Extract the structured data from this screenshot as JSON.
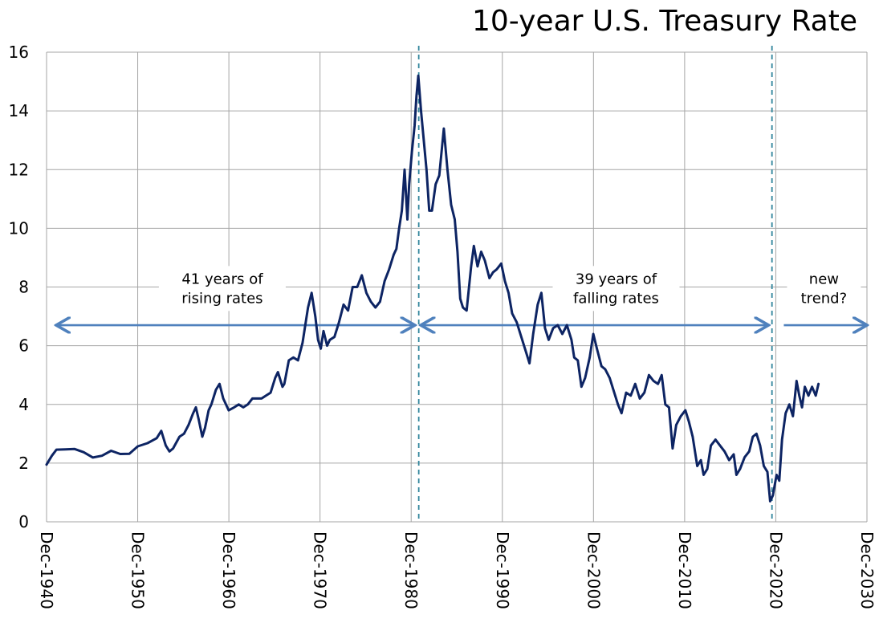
{
  "chart_data": {
    "type": "line",
    "title": "10-year U.S. Treasury Rate",
    "xlabel": "",
    "ylabel": "",
    "xlim": [
      1940.92,
      2030.92
    ],
    "ylim": [
      0,
      16
    ],
    "y_ticks": [
      0,
      2,
      4,
      6,
      8,
      10,
      12,
      14,
      16
    ],
    "x_ticks": [
      {
        "value": 1940.92,
        "label": "Dec-1940"
      },
      {
        "value": 1950.92,
        "label": "Dec-1950"
      },
      {
        "value": 1960.92,
        "label": "Dec-1960"
      },
      {
        "value": 1970.92,
        "label": "Dec-1970"
      },
      {
        "value": 1980.92,
        "label": "Dec-1980"
      },
      {
        "value": 1990.92,
        "label": "Dec-1990"
      },
      {
        "value": 2000.92,
        "label": "Dec-2000"
      },
      {
        "value": 2010.92,
        "label": "Dec-2010"
      },
      {
        "value": 2020.92,
        "label": "Dec-2020"
      },
      {
        "value": 2030.92,
        "label": "Dec-2030"
      }
    ],
    "grid": true,
    "line_color": "#0d2463",
    "arrow_color": "#4f81bd",
    "divider_color": "#31859c",
    "dividers": [
      1981.75,
      2020.5
    ],
    "series": [
      {
        "x": [
          1940.92,
          1941.5,
          1942,
          1943,
          1944,
          1945,
          1946,
          1947,
          1948,
          1949,
          1950,
          1950.92,
          1952,
          1953,
          1953.5,
          1954,
          1954.4,
          1954.8,
          1955.5,
          1956,
          1956.5,
          1957,
          1957.3,
          1957.6,
          1958,
          1958.3,
          1958.7,
          1959,
          1959.5,
          1959.9,
          1960.3,
          1960.9,
          1961.5,
          1962,
          1962.5,
          1963,
          1963.5,
          1964,
          1964.5,
          1965,
          1965.5,
          1966,
          1966.3,
          1966.8,
          1967,
          1967.5,
          1968,
          1968.5,
          1969,
          1969.3,
          1969.6,
          1970,
          1970.4,
          1970.7,
          1971,
          1971.3,
          1971.7,
          1972,
          1972.5,
          1973,
          1973.5,
          1974,
          1974.5,
          1975,
          1975.5,
          1976,
          1976.5,
          1977,
          1977.5,
          1978,
          1978.5,
          1979,
          1979.3,
          1979.6,
          1979.9,
          1980.2,
          1980.5,
          1980.7,
          1981,
          1981.3,
          1981.5,
          1981.7,
          1982,
          1982.3,
          1982.6,
          1982.9,
          1983.2,
          1983.6,
          1984,
          1984.5,
          1984.9,
          1985.3,
          1985.7,
          1986,
          1986.3,
          1986.6,
          1987,
          1987.5,
          1987.8,
          1988.2,
          1988.6,
          1989,
          1989.5,
          1989.9,
          1990.3,
          1990.8,
          1991.2,
          1991.6,
          1992,
          1992.5,
          1993,
          1993.5,
          1993.9,
          1994.3,
          1994.8,
          1995.2,
          1995.6,
          1996,
          1996.5,
          1997,
          1997.5,
          1998,
          1998.5,
          1998.8,
          1999.2,
          1999.6,
          2000,
          2000.5,
          2000.9,
          2001.3,
          2001.8,
          2002.2,
          2002.7,
          2003.2,
          2003.6,
          2004,
          2004.5,
          2005,
          2005.5,
          2006,
          2006.5,
          2007,
          2007.5,
          2008,
          2008.4,
          2008.8,
          2009.2,
          2009.6,
          2010,
          2010.5,
          2011,
          2011.4,
          2011.8,
          2012.3,
          2012.7,
          2013,
          2013.4,
          2013.8,
          2014.3,
          2014.8,
          2015.3,
          2015.8,
          2016.3,
          2016.6,
          2017,
          2017.5,
          2018,
          2018.4,
          2018.8,
          2019.2,
          2019.6,
          2020,
          2020.3,
          2020.6,
          2021,
          2021.3,
          2021.6,
          2022,
          2022.4,
          2022.8,
          2023.2,
          2023.5,
          2023.8,
          2024.1,
          2024.5,
          2024.9,
          2025.3,
          2025.6
        ],
        "y": [
          1.95,
          2.25,
          2.46,
          2.47,
          2.48,
          2.37,
          2.19,
          2.25,
          2.42,
          2.31,
          2.32,
          2.57,
          2.68,
          2.85,
          3.1,
          2.6,
          2.4,
          2.5,
          2.9,
          3.0,
          3.3,
          3.7,
          3.9,
          3.5,
          2.9,
          3.2,
          3.8,
          4.0,
          4.5,
          4.7,
          4.2,
          3.8,
          3.9,
          4.0,
          3.9,
          4.0,
          4.2,
          4.2,
          4.2,
          4.3,
          4.4,
          4.9,
          5.1,
          4.6,
          4.7,
          5.5,
          5.6,
          5.5,
          6.1,
          6.7,
          7.3,
          7.8,
          7.0,
          6.2,
          5.9,
          6.5,
          6.0,
          6.2,
          6.3,
          6.8,
          7.4,
          7.2,
          8.0,
          8.0,
          8.4,
          7.8,
          7.5,
          7.3,
          7.5,
          8.2,
          8.6,
          9.1,
          9.3,
          10.0,
          10.6,
          12.0,
          10.3,
          11.5,
          12.6,
          13.5,
          14.5,
          15.2,
          14.0,
          13.0,
          12.0,
          10.6,
          10.6,
          11.5,
          11.8,
          13.4,
          12.0,
          10.8,
          10.3,
          9.2,
          7.6,
          7.3,
          7.2,
          8.7,
          9.4,
          8.7,
          9.2,
          8.9,
          8.3,
          8.5,
          8.6,
          8.8,
          8.2,
          7.8,
          7.1,
          6.8,
          6.3,
          5.8,
          5.4,
          6.4,
          7.4,
          7.8,
          6.6,
          6.2,
          6.6,
          6.7,
          6.4,
          6.7,
          6.2,
          5.6,
          5.5,
          4.6,
          4.9,
          5.6,
          6.4,
          5.9,
          5.3,
          5.2,
          4.9,
          4.4,
          4.0,
          3.7,
          4.4,
          4.3,
          4.7,
          4.2,
          4.4,
          5.0,
          4.8,
          4.7,
          5.0,
          4.0,
          3.9,
          2.5,
          3.3,
          3.6,
          3.8,
          3.4,
          2.9,
          1.9,
          2.1,
          1.6,
          1.8,
          2.6,
          2.8,
          2.6,
          2.4,
          2.1,
          2.3,
          1.6,
          1.8,
          2.2,
          2.4,
          2.9,
          3.0,
          2.6,
          1.9,
          1.7,
          0.7,
          0.9,
          1.6,
          1.4,
          2.8,
          3.7,
          4.0,
          3.6,
          4.8,
          4.3,
          3.9,
          4.6,
          4.3,
          4.6,
          4.3,
          4.7
        ]
      }
    ],
    "annotations": [
      {
        "lines": [
          "41 years of",
          "rising rates"
        ],
        "arrow_from": 1942.2,
        "arrow_to": 1981.1,
        "arrow_y": 6.7,
        "text_x": 1960.2,
        "text_y": 7.95
      },
      {
        "lines": [
          "39 years of",
          "falling rates"
        ],
        "arrow_from": 1982.2,
        "arrow_to": 2019.9,
        "arrow_y": 6.7,
        "text_x": 2003.4,
        "text_y": 7.95
      },
      {
        "lines": [
          "new",
          "trend?"
        ],
        "arrow_from": 2021.8,
        "arrow_to": 2030.7,
        "arrow_y": 6.7,
        "text_x": 2026.2,
        "text_y": 7.95
      }
    ]
  }
}
